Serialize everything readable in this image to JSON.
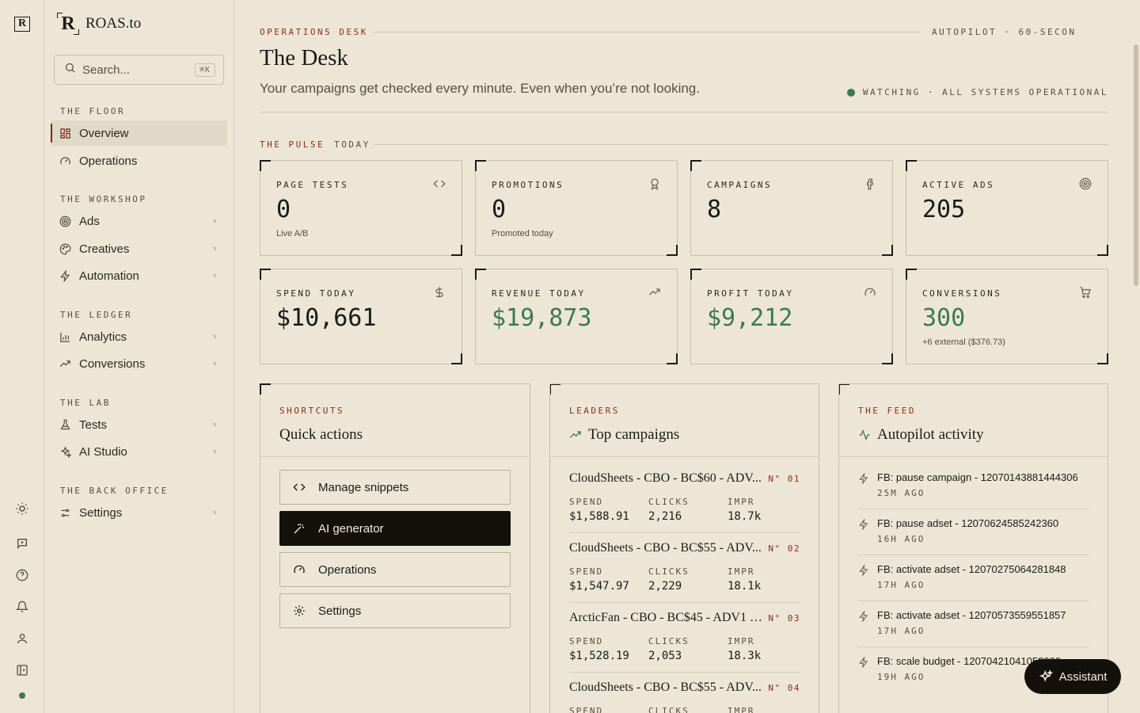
{
  "rail": {
    "logo": "R",
    "icons": [
      "sun-icon",
      "feedback-icon",
      "help-icon",
      "bell-icon",
      "user-icon",
      "panel-toggle-icon"
    ],
    "status_color": "#3d7a4f"
  },
  "brand": {
    "mark": "R",
    "name": "ROAS.to"
  },
  "search": {
    "placeholder": "Search...",
    "shortcut": "⌘K"
  },
  "sidebar": {
    "sections": [
      {
        "title": "THE FLOOR",
        "items": [
          {
            "label": "Overview",
            "icon": "grid-icon",
            "active": true
          },
          {
            "label": "Operations",
            "icon": "gauge-icon"
          }
        ]
      },
      {
        "title": "THE WORKSHOP",
        "items": [
          {
            "label": "Ads",
            "icon": "target-icon"
          },
          {
            "label": "Creatives",
            "icon": "palette-icon"
          },
          {
            "label": "Automation",
            "icon": "bolt-icon"
          }
        ]
      },
      {
        "title": "THE LEDGER",
        "items": [
          {
            "label": "Analytics",
            "icon": "bar-chart-icon"
          },
          {
            "label": "Conversions",
            "icon": "trend-icon"
          }
        ]
      },
      {
        "title": "THE LAB",
        "items": [
          {
            "label": "Tests",
            "icon": "flask-icon"
          },
          {
            "label": "AI Studio",
            "icon": "sparkles-icon"
          }
        ]
      },
      {
        "title": "THE BACK OFFICE",
        "items": [
          {
            "label": "Settings",
            "icon": "sliders-icon"
          }
        ]
      }
    ]
  },
  "header": {
    "eyebrow": "OPERATIONS DESK",
    "autopilot": "AUTOPILOT · 60-SECON",
    "title": "The Desk",
    "subtitle": "Your campaigns get checked every minute. Even when you’re not looking.",
    "status": "WATCHING · ALL SYSTEMS OPERATIONAL",
    "status_color": "#3d7a4f"
  },
  "pulse": {
    "eyebrow": "THE PULSE",
    "when": "TODAY",
    "stats": [
      {
        "label": "PAGE TESTS",
        "value": "0",
        "sub": "Live A/B",
        "icon": "code-icon"
      },
      {
        "label": "PROMOTIONS",
        "value": "0",
        "sub": "Promoted today",
        "icon": "award-icon"
      },
      {
        "label": "CAMPAIGNS",
        "value": "8",
        "sub": "",
        "icon": "facebook-icon"
      },
      {
        "label": "ACTIVE ADS",
        "value": "205",
        "sub": "",
        "icon": "target-icon"
      },
      {
        "label": "SPEND TODAY",
        "value": "$10,661",
        "sub": "",
        "icon": "dollar-icon"
      },
      {
        "label": "REVENUE TODAY",
        "value": "$19,873",
        "sub": "",
        "icon": "trend-icon",
        "green": true
      },
      {
        "label": "PROFIT TODAY",
        "value": "$9,212",
        "sub": "",
        "icon": "gauge-icon",
        "green": true
      },
      {
        "label": "CONVERSIONS",
        "value": "300",
        "sub": "+6 external ($376.73)",
        "icon": "cart-icon",
        "green": true
      }
    ],
    "positive_color": "#3d7a4f"
  },
  "shortcuts": {
    "eyebrow": "SHORTCUTS",
    "title": "Quick actions",
    "buttons": [
      {
        "label": "Manage snippets",
        "icon": "code-icon"
      },
      {
        "label": "AI generator",
        "icon": "wand-icon",
        "primary": true
      },
      {
        "label": "Operations",
        "icon": "gauge-icon"
      },
      {
        "label": "Settings",
        "icon": "gear-icon"
      }
    ]
  },
  "leaders": {
    "eyebrow": "LEADERS",
    "title": "Top campaigns",
    "columns": [
      "SPEND",
      "CLICKS",
      "IMPR"
    ],
    "rows": [
      {
        "name": "CloudSheets - CBO - BC$60 - ADV...",
        "rank": "N° 01",
        "spend": "$1,588.91",
        "clicks": "2,216",
        "impr": "18.7k"
      },
      {
        "name": "CloudSheets - CBO - BC$55 - ADV...",
        "rank": "N° 02",
        "spend": "$1,547.97",
        "clicks": "2,229",
        "impr": "18.1k"
      },
      {
        "name": "ArcticFan - CBO - BC$45 - ADV1 -...",
        "rank": "N° 03",
        "spend": "$1,528.19",
        "clicks": "2,053",
        "impr": "18.3k"
      },
      {
        "name": "CloudSheets - CBO - BC$55 - ADV...",
        "rank": "N° 04",
        "spend": "",
        "clicks": "",
        "impr": ""
      }
    ]
  },
  "feed": {
    "eyebrow": "THE FEED",
    "title": "Autopilot activity",
    "items": [
      {
        "text": "FB: pause campaign - 120701438814443​06",
        "ago": "25M AGO"
      },
      {
        "text": "FB: pause adset - 120706245852423​60",
        "ago": "16H AGO"
      },
      {
        "text": "FB: activate adset - 120702750642818​48",
        "ago": "17H AGO"
      },
      {
        "text": "FB: activate adset - 120705735595518​57",
        "ago": "17H AGO"
      },
      {
        "text": "FB: scale budget - 12070421041058000",
        "ago": "19H AGO"
      }
    ]
  },
  "assistant": {
    "label": "Assistant"
  }
}
